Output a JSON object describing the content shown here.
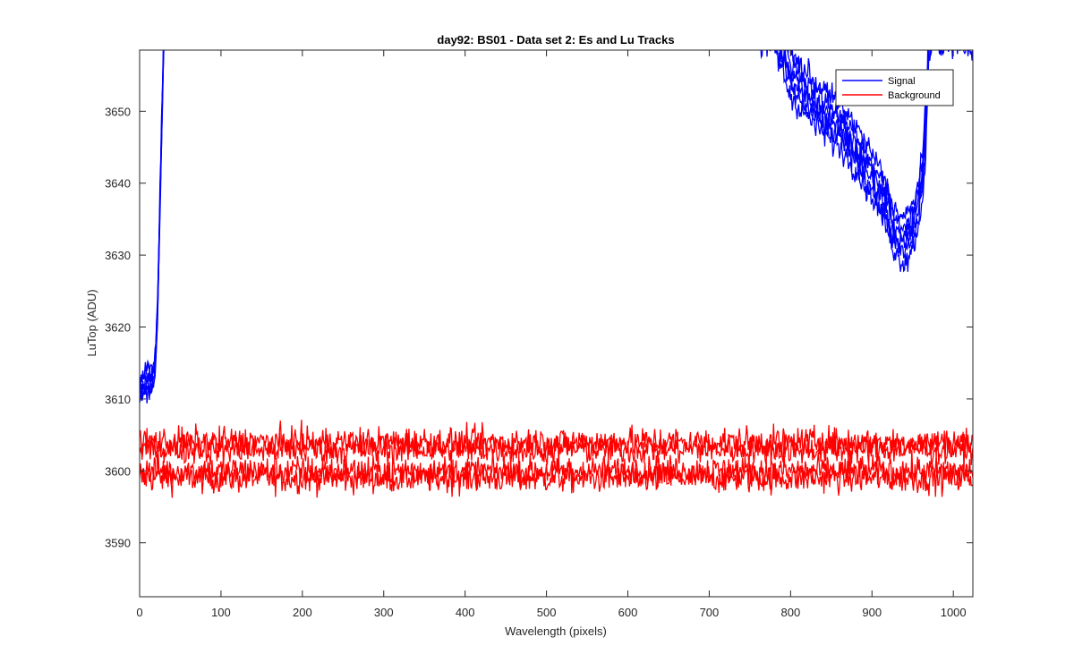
{
  "chart_data": {
    "type": "line",
    "title": "day92: BS01 - Data set 2: Es and Lu Tracks",
    "xlabel": "Wavelength (pixels)",
    "ylabel": "LuTop (ADU)",
    "xlim": [
      0,
      1024
    ],
    "ylim": [
      3582.5,
      3658.5
    ],
    "xticks": [
      0,
      100,
      200,
      300,
      400,
      500,
      600,
      700,
      800,
      900,
      1000
    ],
    "yticks": [
      3590,
      3600,
      3610,
      3620,
      3630,
      3640,
      3650
    ],
    "grid": false,
    "legend_position": "top-right",
    "series": [
      {
        "name": "Signal",
        "color": "#0000ff",
        "traces": 6,
        "x": [
          0,
          5,
          10,
          15,
          18,
          20,
          22,
          24,
          26,
          28,
          30,
          780,
          800,
          830,
          860,
          880,
          900,
          910,
          920,
          930,
          940,
          950,
          955,
          960,
          965,
          968,
          970,
          975,
          1024
        ],
        "values": [
          3611,
          3612,
          3613,
          3613,
          3614,
          3617,
          3622,
          3632,
          3642,
          3652,
          3662,
          3662,
          3655,
          3651,
          3648,
          3645,
          3641,
          3639,
          3636,
          3633,
          3632,
          3634,
          3636,
          3639,
          3645,
          3653,
          3660,
          3662,
          3662
        ],
        "spread": 6
      },
      {
        "name": "Background",
        "color": "#ff0000",
        "traces": 4,
        "x": [
          0,
          1024
        ],
        "values": [
          3601.5,
          3601.5
        ],
        "trace_means": [
          3599,
          3600,
          3603,
          3604
        ],
        "range": [
          3593,
          3609
        ]
      }
    ]
  }
}
